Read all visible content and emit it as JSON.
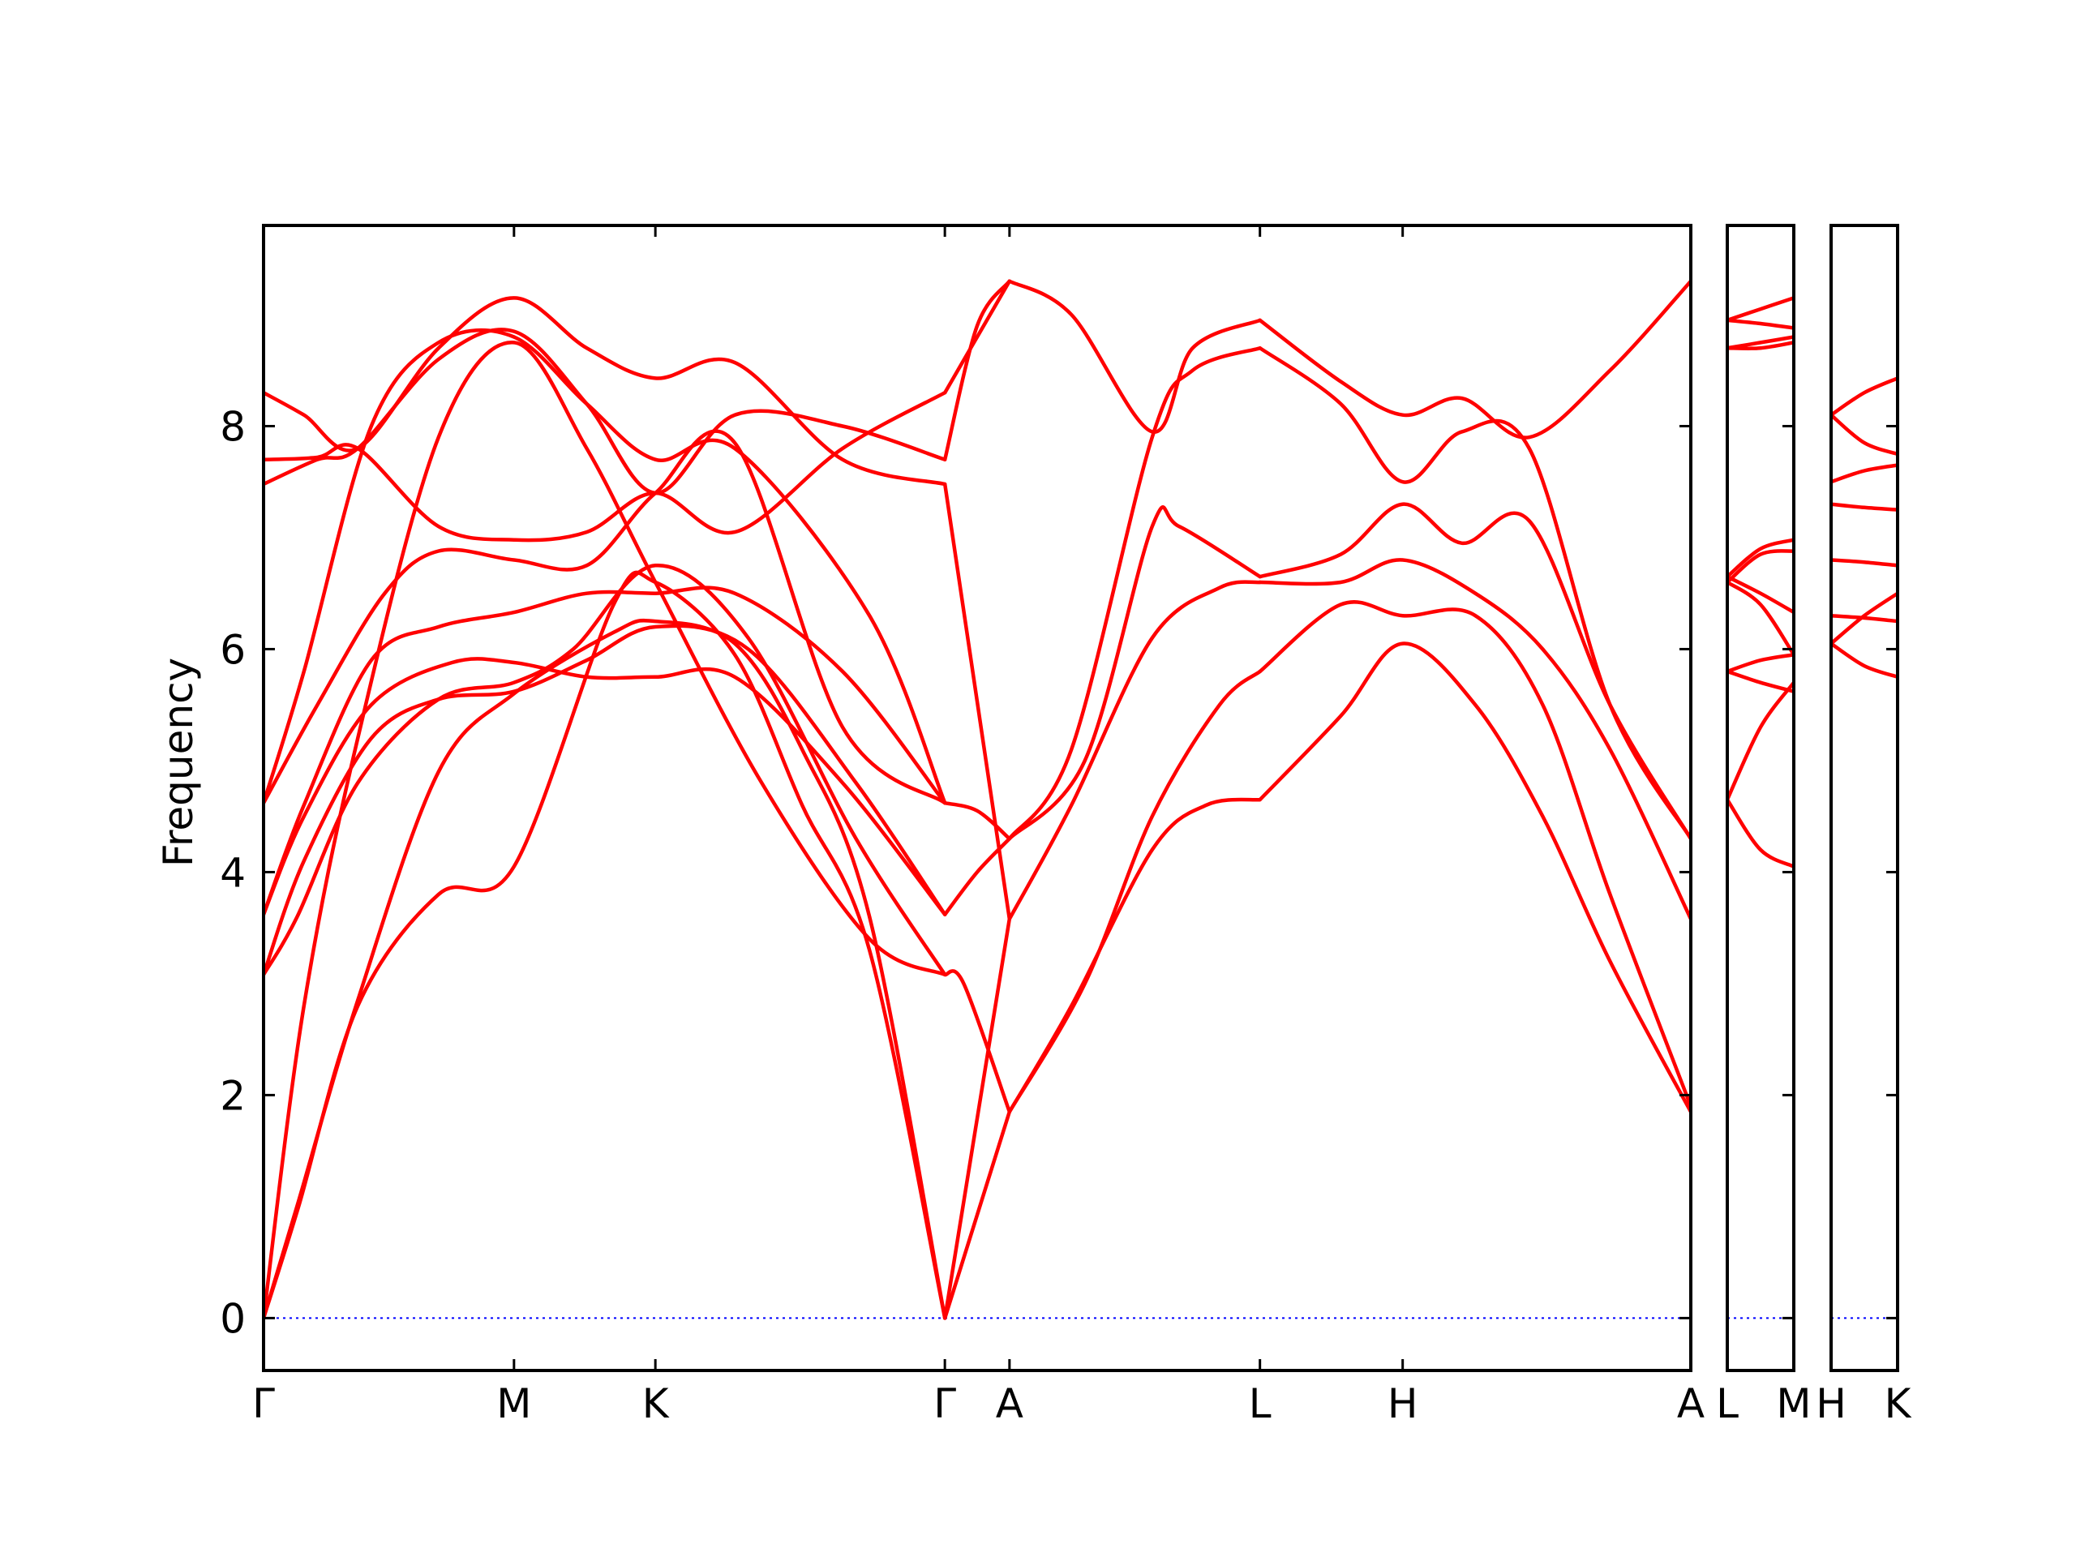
{
  "chart_data": {
    "type": "line",
    "ylabel": "Frequency",
    "ylim": [
      -0.47,
      9.8
    ],
    "yticks": [
      0,
      2,
      4,
      6,
      8
    ],
    "zero_line": true,
    "colors": {
      "band": "#ff0000",
      "zero_line": "#0000ff",
      "frame": "#000000"
    },
    "panels": [
      {
        "kpoint_positions": [
          0,
          1.86,
          2.91,
          5.06,
          5.54,
          7.4,
          8.46,
          10.6
        ],
        "kpoint_labels": [
          "Γ",
          "M",
          "K",
          "Γ",
          "A",
          "L",
          "H",
          "A"
        ],
        "series": [
          {
            "x": [
              0,
              0.26,
              0.7,
              1.3,
              1.86,
              2.6,
              2.91,
              3.5,
              4.0,
              4.5,
              5.06
            ],
            "y": [
              0,
              1.0,
              2.8,
              3.8,
              4.05,
              6.4,
              6.6,
              5.95,
              4.6,
              3.3,
              0
            ]
          },
          {
            "x": [
              0,
              0.26,
              0.7,
              1.3,
              1.86,
              2.6,
              2.91,
              3.5,
              4.0,
              4.5,
              5.06
            ],
            "y": [
              0,
              1.05,
              2.85,
              4.9,
              5.6,
              6.15,
              6.25,
              6.05,
              5.1,
              3.6,
              0
            ]
          },
          {
            "x": [
              0,
              0.3,
              0.7,
              1.3,
              1.86,
              2.4,
              2.91,
              3.7,
              4.5,
              5.06
            ],
            "y": [
              0,
              2.8,
              5.2,
              7.9,
              8.75,
              7.8,
              6.6,
              4.8,
              3.4,
              3.08
            ]
          },
          {
            "x": [
              0,
              0.25,
              0.7,
              1.3,
              1.86,
              2.3,
              2.91,
              3.6,
              4.4,
              5.06
            ],
            "y": [
              3.08,
              3.6,
              4.8,
              5.55,
              5.7,
              6.0,
              6.75,
              6.1,
              4.3,
              3.08
            ]
          },
          {
            "x": [
              0,
              0.3,
              0.8,
              1.3,
              1.86,
              2.4,
              2.91,
              3.6,
              4.4,
              5.06
            ],
            "y": [
              3.08,
              4.1,
              5.2,
              5.55,
              5.62,
              5.9,
              6.2,
              6.0,
              4.8,
              3.62
            ]
          },
          {
            "x": [
              0,
              0.3,
              0.8,
              1.4,
              1.86,
              2.4,
              2.91,
              3.5,
              4.3,
              5.06
            ],
            "y": [
              3.62,
              4.5,
              5.5,
              5.88,
              5.88,
              5.75,
              5.75,
              5.75,
              4.8,
              3.62
            ]
          },
          {
            "x": [
              0,
              0.3,
              0.8,
              1.3,
              1.86,
              2.4,
              2.91,
              3.5,
              4.3,
              5.06
            ],
            "y": [
              3.62,
              4.6,
              5.9,
              6.2,
              6.33,
              6.5,
              6.5,
              6.5,
              5.8,
              4.62
            ]
          },
          {
            "x": [
              0,
              0.4,
              0.9,
              1.3,
              1.86,
              2.4,
              2.91,
              3.5,
              4.3,
              5.06
            ],
            "y": [
              4.62,
              5.5,
              6.5,
              6.88,
              6.8,
              6.75,
              7.4,
              7.85,
              5.3,
              4.62
            ]
          },
          {
            "x": [
              0,
              0.3,
              0.8,
              1.3,
              1.86,
              2.4,
              2.91,
              3.5,
              4.5,
              5.06
            ],
            "y": [
              4.62,
              5.8,
              8.0,
              8.75,
              8.8,
              8.2,
              7.7,
              7.8,
              6.3,
              4.62
            ]
          },
          {
            "x": [
              0,
              0.4,
              0.7,
              1.3,
              1.86,
              2.4,
              2.91,
              3.5,
              4.3,
              5.06
            ],
            "y": [
              7.48,
              7.7,
              7.8,
              8.6,
              8.85,
              8.2,
              7.4,
              8.1,
              8.0,
              7.7
            ]
          },
          {
            "x": [
              0,
              0.4,
              0.7,
              1.3,
              1.86,
              2.4,
              2.91,
              3.5,
              4.3,
              5.06
            ],
            "y": [
              7.7,
              7.72,
              7.8,
              7.1,
              6.98,
              7.05,
              7.4,
              7.05,
              7.8,
              8.3
            ]
          },
          {
            "x": [
              0,
              0.3,
              0.7,
              1.3,
              1.86,
              2.4,
              2.91,
              3.5,
              4.3,
              5.06
            ],
            "y": [
              8.3,
              8.1,
              7.8,
              8.7,
              9.15,
              8.7,
              8.43,
              8.57,
              7.7,
              7.48
            ]
          },
          {
            "x": [
              5.06,
              5.54
            ],
            "y": [
              0,
              1.85
            ]
          },
          {
            "x": [
              5.06,
              5.54
            ],
            "y": [
              0,
              3.58
            ]
          },
          {
            "x": [
              5.06,
              5.2,
              5.54
            ],
            "y": [
              3.08,
              3.0,
              1.85
            ]
          },
          {
            "x": [
              5.06,
              5.3,
              5.54
            ],
            "y": [
              3.62,
              4.0,
              4.3
            ]
          },
          {
            "x": [
              5.06,
              5.3,
              5.54
            ],
            "y": [
              4.62,
              4.55,
              4.3
            ]
          },
          {
            "x": [
              5.06,
              5.54
            ],
            "y": [
              7.48,
              3.58
            ]
          },
          {
            "x": [
              5.06,
              5.3,
              5.54
            ],
            "y": [
              7.7,
              8.9,
              9.3
            ]
          },
          {
            "x": [
              5.06,
              5.3,
              5.54
            ],
            "y": [
              8.3,
              8.8,
              9.3
            ]
          },
          {
            "x": [
              5.54,
              6.0,
              6.6,
              7.0,
              7.4
            ],
            "y": [
              1.85,
              2.8,
              4.2,
              4.6,
              4.65
            ]
          },
          {
            "x": [
              5.54,
              6.1,
              6.6,
              7.1,
              7.4
            ],
            "y": [
              1.85,
              3.0,
              4.5,
              5.5,
              5.8
            ]
          },
          {
            "x": [
              5.54,
              6.0,
              6.6,
              7.1,
              7.4
            ],
            "y": [
              3.58,
              4.6,
              6.1,
              6.55,
              6.6
            ]
          },
          {
            "x": [
              5.54,
              6.1,
              6.6,
              6.8,
              7.4
            ],
            "y": [
              4.3,
              5.0,
              7.1,
              7.1,
              6.65
            ]
          },
          {
            "x": [
              5.54,
              6.0,
              6.6,
              6.9,
              7.4
            ],
            "y": [
              4.3,
              5.1,
              7.9,
              8.5,
              8.7
            ]
          },
          {
            "x": [
              5.54,
              6.0,
              6.6,
              6.9,
              7.4
            ],
            "y": [
              9.3,
              9.0,
              7.95,
              8.7,
              8.95
            ]
          },
          {
            "x": [
              7.4,
              8.0,
              8.46,
              9.0,
              9.5,
              10.0,
              10.6
            ],
            "y": [
              4.65,
              5.4,
              6.05,
              5.5,
              4.5,
              3.2,
              1.85
            ]
          },
          {
            "x": [
              7.4,
              8.0,
              8.46,
              9.0,
              9.5,
              10.0,
              10.6
            ],
            "y": [
              5.8,
              6.4,
              6.3,
              6.3,
              5.5,
              3.8,
              1.9
            ]
          },
          {
            "x": [
              7.4,
              8.0,
              8.46,
              9.0,
              9.5,
              10.0,
              10.6
            ],
            "y": [
              6.6,
              6.6,
              6.8,
              6.5,
              6.0,
              5.1,
              3.58
            ]
          },
          {
            "x": [
              7.4,
              8.0,
              8.46,
              8.9,
              9.4,
              10.0,
              10.6
            ],
            "y": [
              6.65,
              6.85,
              7.3,
              6.95,
              7.15,
              5.5,
              4.3
            ]
          },
          {
            "x": [
              7.4,
              8.0,
              8.46,
              8.9,
              9.4,
              10.0,
              10.6
            ],
            "y": [
              8.7,
              8.2,
              7.5,
              7.95,
              7.8,
              5.5,
              4.3
            ]
          },
          {
            "x": [
              7.4,
              8.0,
              8.46,
              8.9,
              9.4,
              10.0,
              10.6
            ],
            "y": [
              8.95,
              8.4,
              8.1,
              8.25,
              7.9,
              8.5,
              9.3
            ]
          }
        ]
      },
      {
        "kpoint_positions": [
          0,
          1
        ],
        "kpoint_labels": [
          "L",
          "M"
        ],
        "series": [
          {
            "x": [
              0,
              0.5,
              1
            ],
            "y": [
              4.65,
              5.3,
              5.7
            ]
          },
          {
            "x": [
              0,
              0.5,
              1
            ],
            "y": [
              4.65,
              4.2,
              4.05
            ]
          },
          {
            "x": [
              0,
              0.5,
              1
            ],
            "y": [
              5.8,
              5.7,
              5.62
            ]
          },
          {
            "x": [
              0,
              0.5,
              1
            ],
            "y": [
              5.8,
              5.9,
              5.95
            ]
          },
          {
            "x": [
              0,
              0.5,
              1
            ],
            "y": [
              6.6,
              6.4,
              5.95
            ]
          },
          {
            "x": [
              0,
              0.5,
              1
            ],
            "y": [
              6.65,
              6.5,
              6.33
            ]
          },
          {
            "x": [
              0,
              0.5,
              1
            ],
            "y": [
              6.6,
              6.85,
              6.88
            ]
          },
          {
            "x": [
              0,
              0.5,
              1
            ],
            "y": [
              6.65,
              6.9,
              6.98
            ]
          },
          {
            "x": [
              0,
              0.5,
              1
            ],
            "y": [
              8.7,
              8.7,
              8.75
            ]
          },
          {
            "x": [
              0,
              0.5,
              1
            ],
            "y": [
              8.7,
              8.75,
              8.8
            ]
          },
          {
            "x": [
              0,
              0.5,
              1
            ],
            "y": [
              8.95,
              8.92,
              8.88
            ]
          },
          {
            "x": [
              0,
              0.5,
              1
            ],
            "y": [
              8.95,
              9.05,
              9.15
            ]
          }
        ]
      },
      {
        "kpoint_positions": [
          0,
          1
        ],
        "kpoint_labels": [
          "H",
          "K"
        ],
        "series": [
          {
            "x": [
              0,
              0.5,
              1
            ],
            "y": [
              6.05,
              5.85,
              5.75
            ]
          },
          {
            "x": [
              0,
              0.5,
              1
            ],
            "y": [
              6.05,
              6.3,
              6.5
            ]
          },
          {
            "x": [
              0,
              0.5,
              1
            ],
            "y": [
              6.3,
              6.28,
              6.25
            ]
          },
          {
            "x": [
              0,
              0.5,
              1
            ],
            "y": [
              6.8,
              6.78,
              6.75
            ]
          },
          {
            "x": [
              0,
              0.5,
              1
            ],
            "y": [
              7.3,
              7.27,
              7.25
            ]
          },
          {
            "x": [
              0,
              0.5,
              1
            ],
            "y": [
              7.5,
              7.6,
              7.65
            ]
          },
          {
            "x": [
              0,
              0.5,
              1
            ],
            "y": [
              8.1,
              7.85,
              7.75
            ]
          },
          {
            "x": [
              0,
              0.5,
              1
            ],
            "y": [
              8.1,
              8.3,
              8.43
            ]
          }
        ]
      }
    ]
  }
}
